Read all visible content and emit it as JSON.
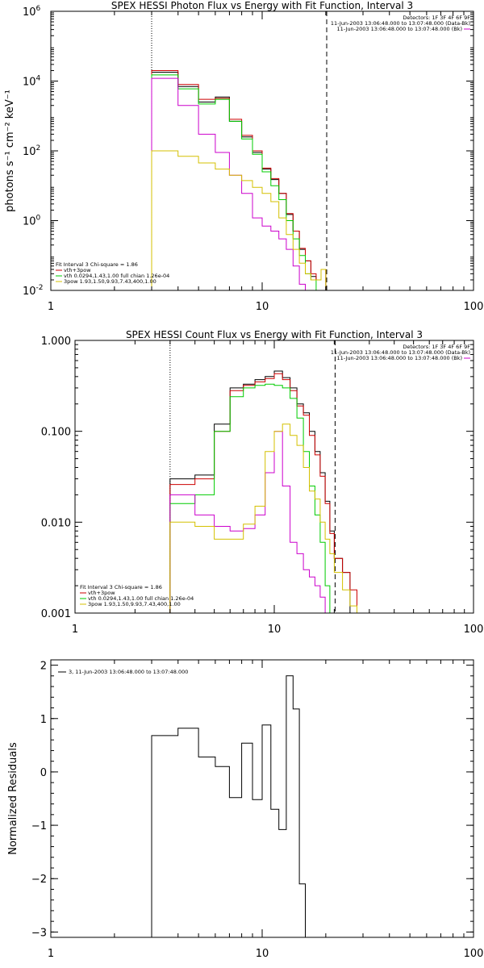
{
  "chart_data": [
    {
      "type": "line",
      "title": "SPEX HESSI Photon Flux vs Energy with Fit Function, Interval 3",
      "xlabel": "",
      "ylabel": "photons s⁻¹ cm⁻² keV⁻¹",
      "xscale": "log",
      "yscale": "log",
      "xlim": [
        1,
        100
      ],
      "ylim": [
        0.01,
        1000000
      ],
      "x_ticks": [
        "1",
        "10",
        "100"
      ],
      "y_ticks": [
        {
          "value": 0.01,
          "base": "10",
          "exp": "-2"
        },
        {
          "value": 1,
          "base": "10",
          "exp": "0"
        },
        {
          "value": 100,
          "base": "10",
          "exp": "2"
        },
        {
          "value": 10000,
          "base": "10",
          "exp": "4"
        },
        {
          "value": 1000000,
          "base": "10",
          "exp": "6"
        }
      ],
      "info_lines": [
        {
          "text": "Detectors: 1F 3F 4F 6F 9F",
          "color": ""
        },
        {
          "text": "11-Jun-2003 13:06:48.000 to 13:07:48.000 (Data-Bk)",
          "color": ""
        },
        {
          "text": "11-Jun-2003 13:06:48.000 to 13:07:48.000 (Bk)",
          "color": "#cc00cc"
        }
      ],
      "legend_title": "Fit Interval 3   Chi-square = 1.86",
      "legend": [
        {
          "label": "vth+3pow",
          "color": "#cc0000"
        },
        {
          "label": "vth 0.0294,1.43,1.00  full chian 1.26e-04",
          "color": "#00cc00"
        },
        {
          "label": "3pow 1.93,1.50,9.93,7.43,400,1.00",
          "color": "#d4c000"
        }
      ],
      "vlines": [
        {
          "x": 3,
          "style": "dotted"
        },
        {
          "x": 20.2,
          "style": "dashed"
        }
      ],
      "edges": [
        3,
        4,
        5,
        6,
        7,
        8,
        9,
        10,
        11,
        12,
        13,
        14,
        15,
        16,
        17,
        18,
        19,
        20,
        22,
        24,
        26,
        28
      ],
      "series": [
        {
          "color": "#000000",
          "values": [
            18000,
            7000,
            2500,
            3500,
            700,
            250,
            90,
            30,
            15,
            6,
            1.5,
            0.5,
            0.15,
            0.07,
            0.025,
            0.02,
            0.04,
            0.01,
            0.01,
            null,
            null
          ]
        },
        {
          "color": "#cc0000",
          "values": [
            20000,
            8000,
            3000,
            3200,
            800,
            280,
            100,
            32,
            16,
            6,
            1.6,
            0.5,
            0.16,
            0.07,
            0.03,
            0.02,
            0.04,
            0.01,
            0.01,
            0.01,
            null
          ]
        },
        {
          "color": "#00cc00",
          "values": [
            15000,
            6000,
            2200,
            3000,
            700,
            220,
            80,
            25,
            10,
            4,
            1.0,
            0.3,
            0.1,
            0.03,
            0.02,
            0.01,
            0.01,
            null,
            null,
            null,
            null
          ]
        },
        {
          "color": "#cc00cc",
          "values": [
            12000,
            2000,
            300,
            90,
            20,
            6,
            1.2,
            0.7,
            0.5,
            0.3,
            0.15,
            0.05,
            0.015,
            0.01,
            0.005,
            null,
            null,
            null,
            null,
            null,
            null
          ]
        },
        {
          "color": "#d4c000",
          "values": [
            100,
            70,
            45,
            30,
            20,
            14,
            9,
            6,
            3.5,
            1.2,
            0.4,
            0.15,
            0.06,
            0.03,
            0.02,
            0.02,
            0.04,
            0.01,
            0.01,
            0.01,
            0.01
          ]
        }
      ]
    },
    {
      "type": "line",
      "title": "SPEX HESSI Count Flux vs Energy with Fit Function, Interval 3",
      "xlabel": "",
      "ylabel": "",
      "xscale": "log",
      "yscale": "log",
      "xlim": [
        1,
        100
      ],
      "ylim": [
        0.001,
        1
      ],
      "x_ticks": [
        "1",
        "10",
        "100"
      ],
      "y_ticks": [
        {
          "value": 0.001,
          "label": "0.001"
        },
        {
          "value": 0.01,
          "label": "0.010"
        },
        {
          "value": 0.1,
          "label": "0.100"
        },
        {
          "value": 1,
          "label": "1.000"
        }
      ],
      "info_lines": [
        {
          "text": "Detectors: 1F 3F 4F 6F 9F",
          "color": ""
        },
        {
          "text": "11-Jun-2003 13:06:48.000 to 13:07:48.000 (Data-Bk)",
          "color": ""
        },
        {
          "text": "11-Jun-2003 13:06:48.000 to 13:07:48.000 (Bk)",
          "color": "#cc00cc"
        }
      ],
      "legend_title": "Fit Interval 3   Chi-square = 1.86",
      "legend": [
        {
          "label": "vth+3pow",
          "color": "#cc0000"
        },
        {
          "label": "vth 0.0294,1.43,1.00  full chian 1.26e-04",
          "color": "#00cc00"
        },
        {
          "label": "3pow 1.93,1.50,9.93,7.43,400,1.00",
          "color": "#d4c000"
        }
      ],
      "vlines": [
        {
          "x": 3,
          "style": "dotted"
        },
        {
          "x": 20.2,
          "style": "dashed"
        }
      ],
      "edges": [
        3,
        4,
        5,
        6,
        7,
        8,
        9,
        10,
        11,
        12,
        13,
        14,
        15,
        16,
        17,
        18,
        19,
        20,
        22,
        24,
        26,
        28
      ],
      "series": [
        {
          "color": "#000000",
          "values": [
            0.03,
            0.033,
            0.12,
            0.3,
            0.33,
            0.37,
            0.4,
            0.46,
            0.39,
            0.3,
            0.2,
            0.16,
            0.1,
            0.06,
            0.035,
            0.017,
            0.008,
            0.004,
            0.0028,
            null,
            null
          ]
        },
        {
          "color": "#cc0000",
          "values": [
            0.026,
            0.03,
            0.1,
            0.28,
            0.32,
            0.35,
            0.38,
            0.43,
            0.37,
            0.28,
            0.19,
            0.15,
            0.09,
            0.055,
            0.032,
            0.016,
            0.0075,
            0.004,
            0.0028,
            0.0018,
            null
          ]
        },
        {
          "color": "#00cc00",
          "values": [
            0.016,
            0.02,
            0.1,
            0.24,
            0.3,
            0.32,
            0.33,
            0.32,
            0.3,
            0.23,
            0.14,
            0.06,
            0.025,
            0.012,
            0.006,
            0.002,
            0.001,
            null,
            null,
            null,
            null
          ]
        },
        {
          "color": "#cc00cc",
          "values": [
            0.02,
            0.012,
            0.009,
            0.008,
            0.0085,
            0.012,
            0.035,
            0.1,
            0.025,
            0.006,
            0.0045,
            0.003,
            0.0025,
            0.002,
            0.0015,
            null,
            null,
            null,
            null,
            null,
            null
          ]
        },
        {
          "color": "#d4c000",
          "values": [
            0.01,
            0.009,
            0.0065,
            0.0065,
            0.0095,
            0.015,
            0.06,
            0.1,
            0.12,
            0.09,
            0.07,
            0.04,
            0.022,
            0.018,
            0.01,
            0.0065,
            0.0045,
            0.0028,
            0.0018,
            0.0012,
            null
          ]
        }
      ]
    },
    {
      "type": "line",
      "title": "",
      "xlabel": "",
      "ylabel": "Normalized Residuals",
      "xscale": "log",
      "yscale": "linear",
      "xlim": [
        1,
        100
      ],
      "ylim": [
        -3.1,
        2.1
      ],
      "x_ticks": [
        "1",
        "10",
        "100"
      ],
      "y_ticks": [
        {
          "value": 2,
          "label": "2"
        },
        {
          "value": 1,
          "label": "1"
        },
        {
          "value": 0,
          "label": "0"
        },
        {
          "value": -1,
          "label": "−1"
        },
        {
          "value": -2,
          "label": "−2"
        },
        {
          "value": -3,
          "label": "−3"
        }
      ],
      "legend": [
        {
          "label": "3, 11-Jun-2003 13:06:48.000 to 13:07:48.000",
          "color": "#000000"
        }
      ],
      "edges": [
        3,
        4,
        5,
        6,
        7,
        8,
        9,
        10,
        11,
        12,
        13,
        14,
        15,
        16,
        17,
        18,
        19,
        20
      ],
      "series": [
        {
          "name": "3, 11-Jun-2003 13:06:48.000 to 13:07:48.000",
          "color": "#000000",
          "values": [
            0.68,
            0.82,
            0.28,
            0.1,
            -0.48,
            0.54,
            -0.52,
            0.88,
            -0.7,
            -1.08,
            1.8,
            1.18,
            -2.1
          ]
        }
      ]
    }
  ]
}
